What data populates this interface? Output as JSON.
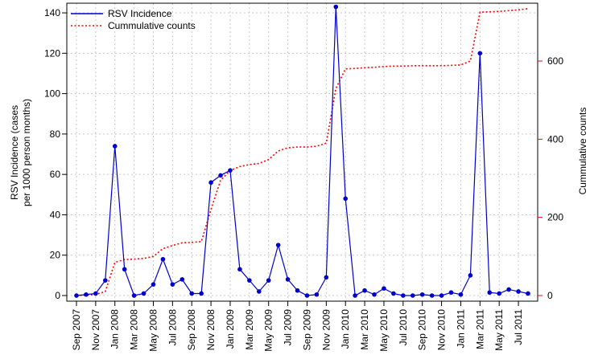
{
  "chart_data": {
    "type": "line",
    "x_tick_labels": [
      "Sep 2007",
      "Nov 2007",
      "Jan 2008",
      "Mar 2008",
      "May 2008",
      "Jul 2008",
      "Sep 2008",
      "Nov 2008",
      "Jan 2009",
      "Mar 2009",
      "May 2009",
      "Jul 2009",
      "Sep 2009",
      "Nov 2009",
      "Jan 2010",
      "Mar 2010",
      "May 2010",
      "Jul 2010",
      "Sep 2010",
      "Nov 2010",
      "Jan 2011",
      "Mar 2011",
      "May 2011",
      "Jul 2011"
    ],
    "x": [
      "Sep 2007",
      "Oct 2007",
      "Nov 2007",
      "Dec 2007",
      "Jan 2008",
      "Feb 2008",
      "Mar 2008",
      "Apr 2008",
      "May 2008",
      "Jun 2008",
      "Jul 2008",
      "Aug 2008",
      "Sep 2008",
      "Oct 2008",
      "Nov 2008",
      "Dec 2008",
      "Jan 2009",
      "Feb 2009",
      "Mar 2009",
      "Apr 2009",
      "May 2009",
      "Jun 2009",
      "Jul 2009",
      "Aug 2009",
      "Sep 2009",
      "Oct 2009",
      "Nov 2009",
      "Dec 2009",
      "Jan 2010",
      "Feb 2010",
      "Mar 2010",
      "Apr 2010",
      "May 2010",
      "Jun 2010",
      "Jul 2010",
      "Aug 2010",
      "Sep 2010",
      "Oct 2010",
      "Nov 2010",
      "Dec 2010",
      "Jan 2011",
      "Feb 2011",
      "Mar 2011",
      "Apr 2011",
      "May 2011",
      "Jun 2011",
      "Jul 2011",
      "Aug 2011"
    ],
    "series": [
      {
        "name": "RSV Incidence",
        "axis": "left",
        "color": "#0000cc",
        "style": "solid-with-points",
        "values": [
          0,
          0.5,
          1,
          7.5,
          74,
          13,
          0,
          1,
          5.5,
          18,
          5.5,
          8,
          1,
          1,
          56,
          59.5,
          62,
          13,
          7.5,
          2,
          7.5,
          25,
          8,
          2.5,
          0,
          0.5,
          9,
          143,
          48,
          0,
          2.5,
          0.5,
          3.5,
          1,
          0,
          0,
          0.5,
          0,
          0,
          1.5,
          0.5,
          10,
          120,
          1.5,
          1,
          3,
          2,
          1
        ]
      },
      {
        "name": "Cummulative counts",
        "axis": "right",
        "color": "#ff0000",
        "style": "dotted",
        "values": [
          0,
          1,
          3,
          10,
          85,
          92,
          93,
          95,
          100,
          120,
          128,
          135,
          136,
          138,
          220,
          295,
          320,
          330,
          335,
          338,
          348,
          370,
          378,
          380,
          380,
          382,
          390,
          530,
          580,
          581,
          583,
          584,
          586,
          587,
          587,
          588,
          588,
          588,
          588,
          589,
          590,
          600,
          725,
          726,
          727,
          729,
          731,
          734
        ]
      }
    ],
    "xlabel": "",
    "ylabel_left": "RSV Incidence (cases\nper 1000 person months)",
    "ylabel_right": "Cummulative counts",
    "ylim_left": [
      0,
      143
    ],
    "ylim_right": [
      0,
      748
    ],
    "yticks_left": [
      0,
      20,
      40,
      60,
      80,
      100,
      120,
      140
    ],
    "yticks_right": [
      0,
      200,
      400,
      600
    ],
    "grid": true,
    "legend_position": "top-left",
    "right_axis_color": "#ff0000"
  }
}
